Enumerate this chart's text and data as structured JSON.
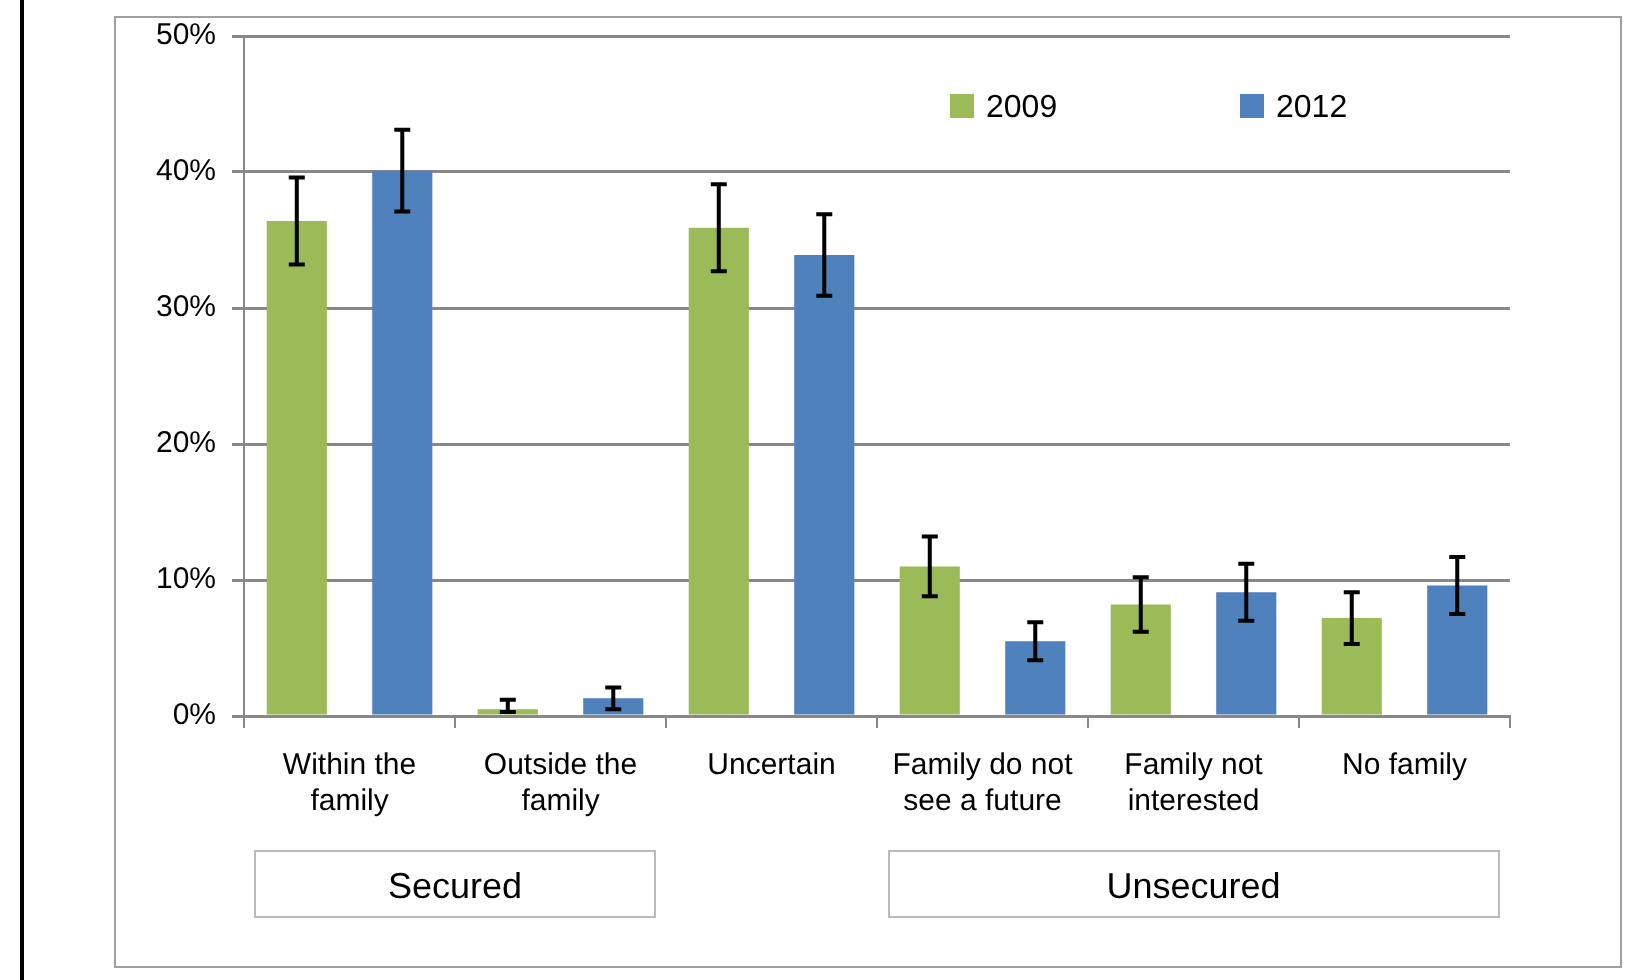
{
  "chart_data": {
    "type": "bar",
    "categories": [
      "Within the family",
      "Outside the family",
      "Uncertain",
      "Family do not see a future",
      "Family not interested",
      "No family"
    ],
    "series": [
      {
        "name": "2009",
        "color": "#9bbb59",
        "values": [
          36.4,
          0.5,
          35.9,
          11.0,
          8.2,
          7.2
        ],
        "errors": [
          3.2,
          [
            0.3,
            1.2
          ],
          3.2,
          2.2,
          2.0,
          1.9
        ]
      },
      {
        "name": "2012",
        "color": "#4f81bd",
        "values": [
          40.1,
          1.3,
          33.9,
          5.5,
          9.1,
          9.6
        ],
        "errors": [
          3.0,
          0.8,
          3.0,
          1.4,
          2.1,
          2.1
        ]
      }
    ],
    "ylim": [
      0,
      50
    ],
    "yticks": [
      {
        "value": 0,
        "label": "0%"
      },
      {
        "value": 10,
        "label": "10%"
      },
      {
        "value": 20,
        "label": "20%"
      },
      {
        "value": 30,
        "label": "30%"
      },
      {
        "value": 40,
        "label": "40%"
      },
      {
        "value": 50,
        "label": "50%"
      }
    ],
    "grid": "y",
    "legend": "top right",
    "annotations": [
      "Secured",
      "Unsecured"
    ]
  }
}
